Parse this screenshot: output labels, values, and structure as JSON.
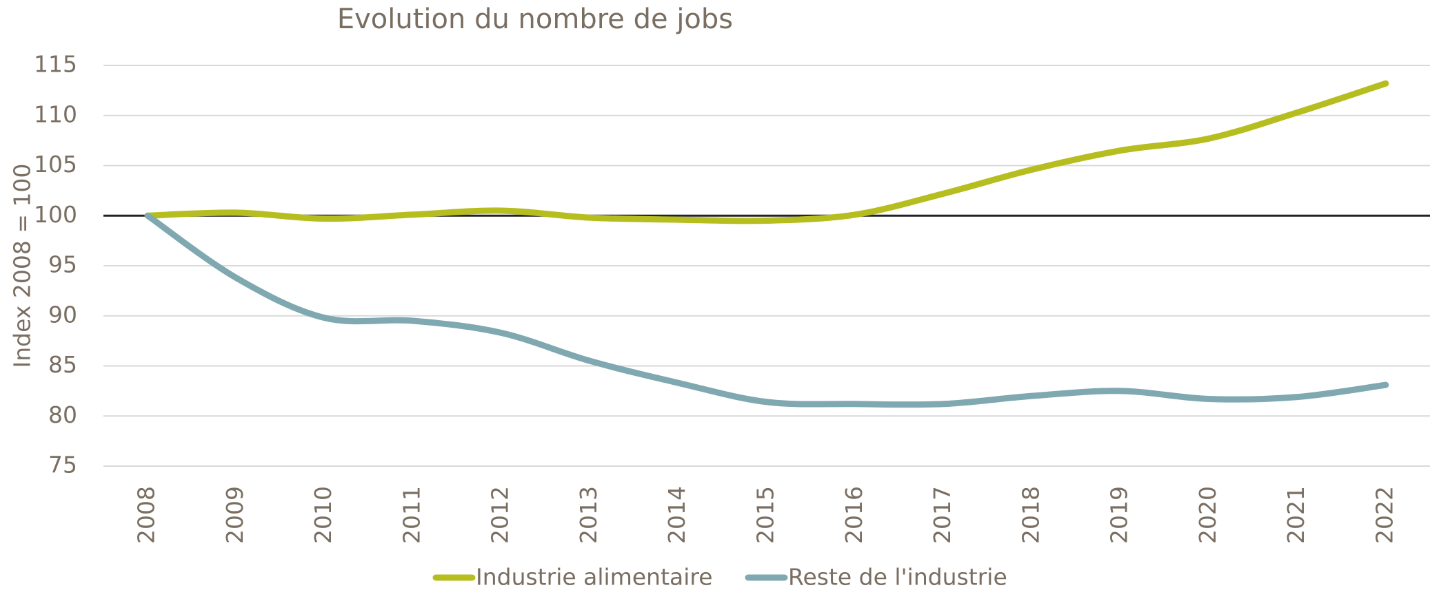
{
  "chart_data": {
    "type": "line",
    "title": "Evolution du nombre de jobs",
    "y_label": "Index 2008 = 100",
    "categories": [
      "2008",
      "2009",
      "2010",
      "2011",
      "2012",
      "2013",
      "2014",
      "2015",
      "2016",
      "2017",
      "2018",
      "2019",
      "2020",
      "2021",
      "2022"
    ],
    "series": [
      {
        "name": "Industrie alimentaire",
        "color": "#b6bd1f",
        "values": [
          100,
          100.3,
          99.7,
          100.1,
          100.5,
          99.8,
          99.6,
          99.5,
          100.1,
          102.2,
          104.6,
          106.5,
          107.7,
          110.3,
          113.2
        ]
      },
      {
        "name": "Reste de l'industrie",
        "color": "#7fa8b0",
        "values": [
          100,
          93.8,
          89.8,
          89.5,
          88.3,
          85.5,
          83.3,
          81.4,
          81.2,
          81.2,
          82.0,
          82.5,
          81.7,
          81.9,
          83.1
        ]
      }
    ],
    "ylim": [
      75,
      115
    ],
    "yticks": [
      75,
      80,
      85,
      90,
      95,
      100,
      105,
      110,
      115
    ],
    "reference_line": 100,
    "grid": true,
    "legend": "bottom"
  }
}
